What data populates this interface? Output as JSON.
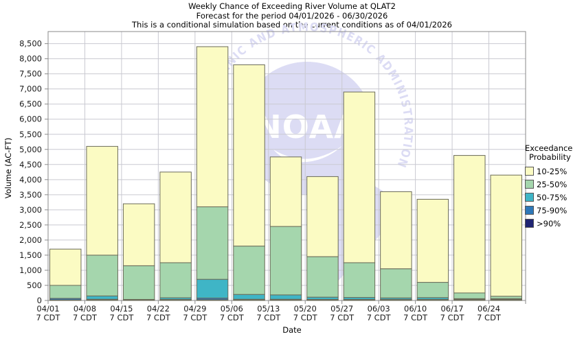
{
  "title": {
    "line1": "Weekly Chance of Exceeding River Volume at QLAT2",
    "line2": "Forecast for the period 04/01/2026 - 06/30/2026",
    "line3": "This is a conditional simulation based on the current conditions as of 04/01/2026"
  },
  "watermark": {
    "ring_text": "NATIONAL OCEANIC AND ATMOSPHERIC ADMINISTRATION",
    "center_text": "NOAA",
    "color": "#dcdcf4",
    "center_text_color": "#ffffff"
  },
  "legend": {
    "title_line1": "Exceedance",
    "title_line2": "Probability",
    "items": [
      {
        "label": "10-25%",
        "color": "#FBFBC3"
      },
      {
        "label": "25-50%",
        "color": "#A5D6AD"
      },
      {
        "label": "50-75%",
        "color": "#3FB5C6"
      },
      {
        "label": "75-90%",
        "color": "#2E78B8"
      },
      {
        "label": ">90%",
        "color": "#1F2472"
      }
    ]
  },
  "chart_data": {
    "type": "bar",
    "stacked": true,
    "title": "Weekly Chance of Exceeding River Volume at QLAT2",
    "xlabel": "Date",
    "ylabel": "Volume (AC-FT)",
    "ylim": [
      0,
      8900
    ],
    "ytick_step": 500,
    "ytick_max": 8500,
    "grid": true,
    "legend_position": "right",
    "categories": [
      "04/01",
      "04/08",
      "04/15",
      "04/22",
      "04/29",
      "05/06",
      "05/13",
      "05/20",
      "05/27",
      "06/03",
      "06/10",
      "06/17",
      "06/24"
    ],
    "tick_sublabel": "7 CDT",
    "units": "AC-FT",
    "series": [
      {
        "name": ">90%",
        "color": "#1F2472",
        "cumulative_tops": [
          20,
          20,
          20,
          20,
          25,
          20,
          20,
          20,
          20,
          20,
          20,
          20,
          20
        ]
      },
      {
        "name": "75-90%",
        "color": "#2E78B8",
        "cumulative_tops": [
          70,
          40,
          35,
          35,
          80,
          40,
          40,
          35,
          35,
          35,
          35,
          35,
          35
        ]
      },
      {
        "name": "50-75%",
        "color": "#3FB5C6",
        "cumulative_tops": [
          70,
          150,
          35,
          90,
          700,
          200,
          185,
          110,
          100,
          85,
          95,
          60,
          60
        ]
      },
      {
        "name": "25-50%",
        "color": "#A5D6AD",
        "cumulative_tops": [
          500,
          1500,
          1150,
          1250,
          3100,
          1800,
          2450,
          1450,
          1250,
          1050,
          600,
          250,
          140
        ]
      },
      {
        "name": "10-25%",
        "color": "#FBFBC3",
        "cumulative_tops": [
          1700,
          5100,
          3200,
          4250,
          8400,
          7800,
          4750,
          4100,
          6900,
          3600,
          3350,
          4800,
          4150
        ]
      }
    ],
    "bar_totals": [
      1700,
      5100,
      3200,
      4250,
      8400,
      7800,
      4750,
      4100,
      6900,
      3600,
      3350,
      4800,
      4150
    ],
    "style": {
      "bar_border": "#6A6A58",
      "gridline": "#C9C9D1",
      "plot_border": "#8A8A8A",
      "tick_color": "#8A8A8A",
      "text_color": "#1A1A1A"
    }
  }
}
